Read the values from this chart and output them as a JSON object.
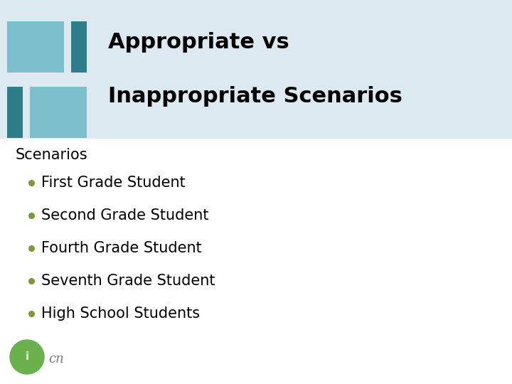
{
  "title_line1": "Appropriate vs",
  "title_line2": "Inappropriate Scenarios",
  "header_bg_color": "#dce9f0",
  "body_bg_color": "#ffffff",
  "title_color": "#000000",
  "title_fontsize": 22,
  "section_label": "Scenarios",
  "section_fontsize": 15,
  "bullet_items": [
    "First Grade Student",
    "Second Grade Student",
    "Fourth Grade Student",
    "Seventh Grade Student",
    "High School Students"
  ],
  "bullet_color": "#7a9a3a",
  "bullet_fontsize": 15,
  "icon_colors": {
    "teal_light": "#7dbfcc",
    "teal_dark": "#2e7d8a"
  },
  "logo_circle_color": "#6ab04c",
  "logo_script_color": "#777777"
}
